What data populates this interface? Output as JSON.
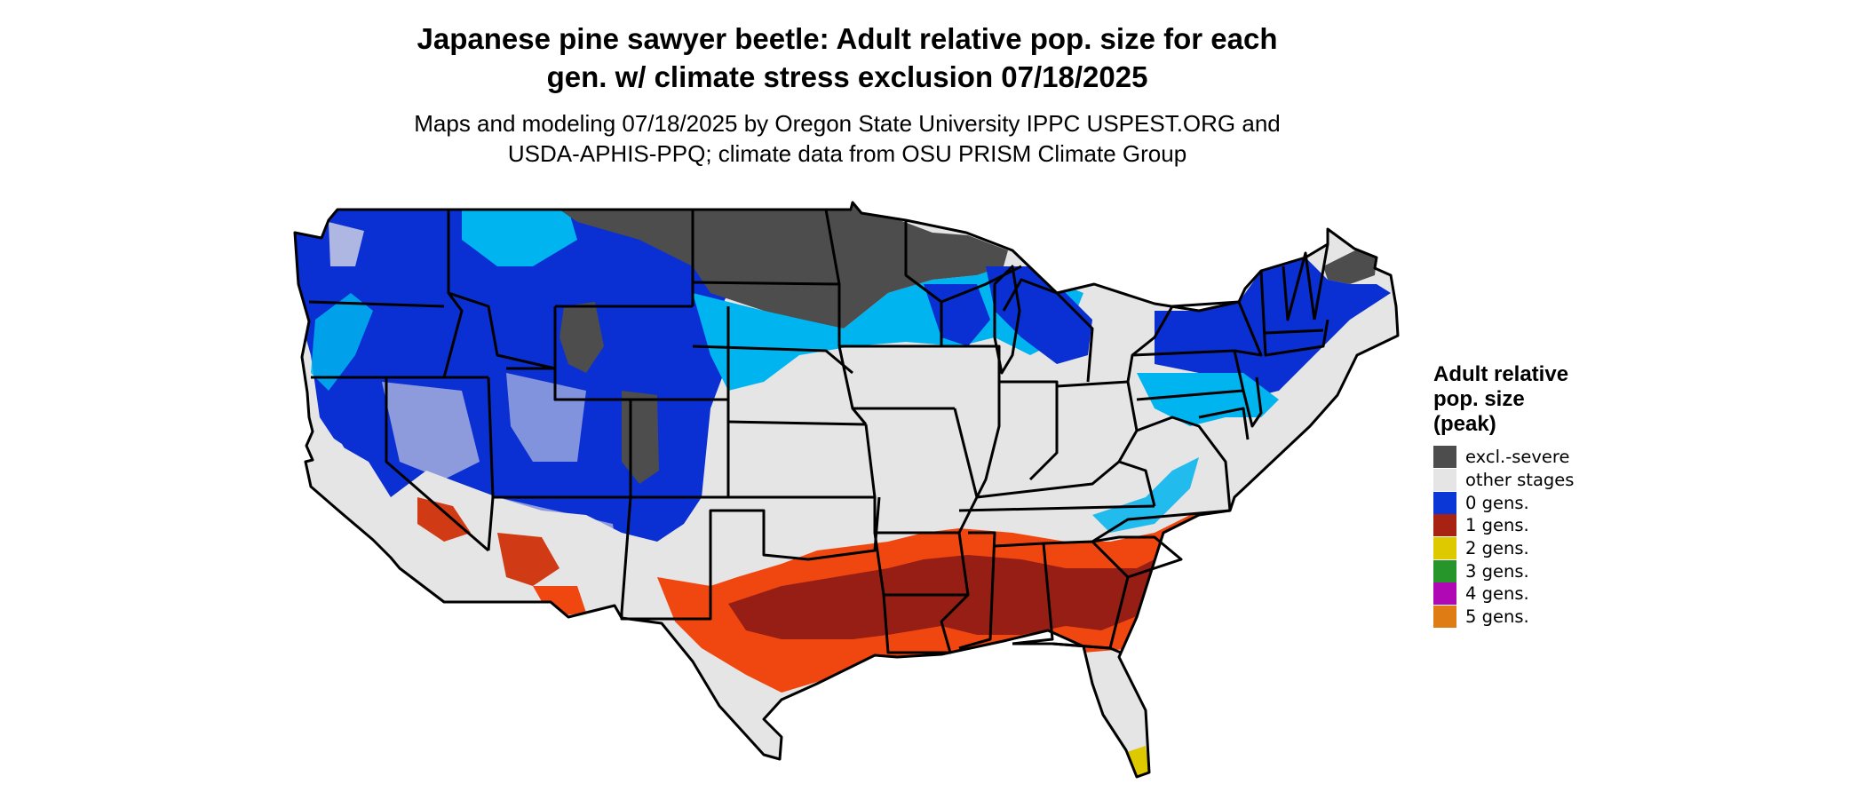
{
  "header": {
    "title_lines": [
      "Japanese pine sawyer beetle: Adult relative pop. size for each",
      "gen. w/ climate stress exclusion 07/18/2025"
    ],
    "subtitle_lines": [
      "Maps and modeling 07/18/2025 by Oregon State University IPPC USPEST.ORG and",
      "USDA-APHIS-PPQ; climate data from OSU PRISM Climate Group"
    ]
  },
  "legend": {
    "title_lines": [
      "Adult relative",
      "pop. size",
      "(peak)"
    ],
    "items": [
      {
        "label": "excl.-severe",
        "color": "#4d4d4d"
      },
      {
        "label": "other stages",
        "color": "#e5e5e5"
      },
      {
        "label": "0 gens.",
        "color": "#0a37d6"
      },
      {
        "label": "1 gens.",
        "color": "#a82214"
      },
      {
        "label": "2 gens.",
        "color": "#dec900"
      },
      {
        "label": "3 gens.",
        "color": "#26962a"
      },
      {
        "label": "4 gens.",
        "color": "#b008b4"
      },
      {
        "label": "5 gens.",
        "color": "#e07c14"
      }
    ]
  },
  "map_colors": {
    "land_other": "#e5e5e5",
    "excl_severe": "#4d4d4d",
    "zero_gens_dark": "#0a2fd2",
    "zero_gens_light": "#00b4f0",
    "one_gen_dark": "#961e14",
    "one_gen_light": "#f04610",
    "two_gens": "#dec900",
    "state_border": "#000000"
  }
}
